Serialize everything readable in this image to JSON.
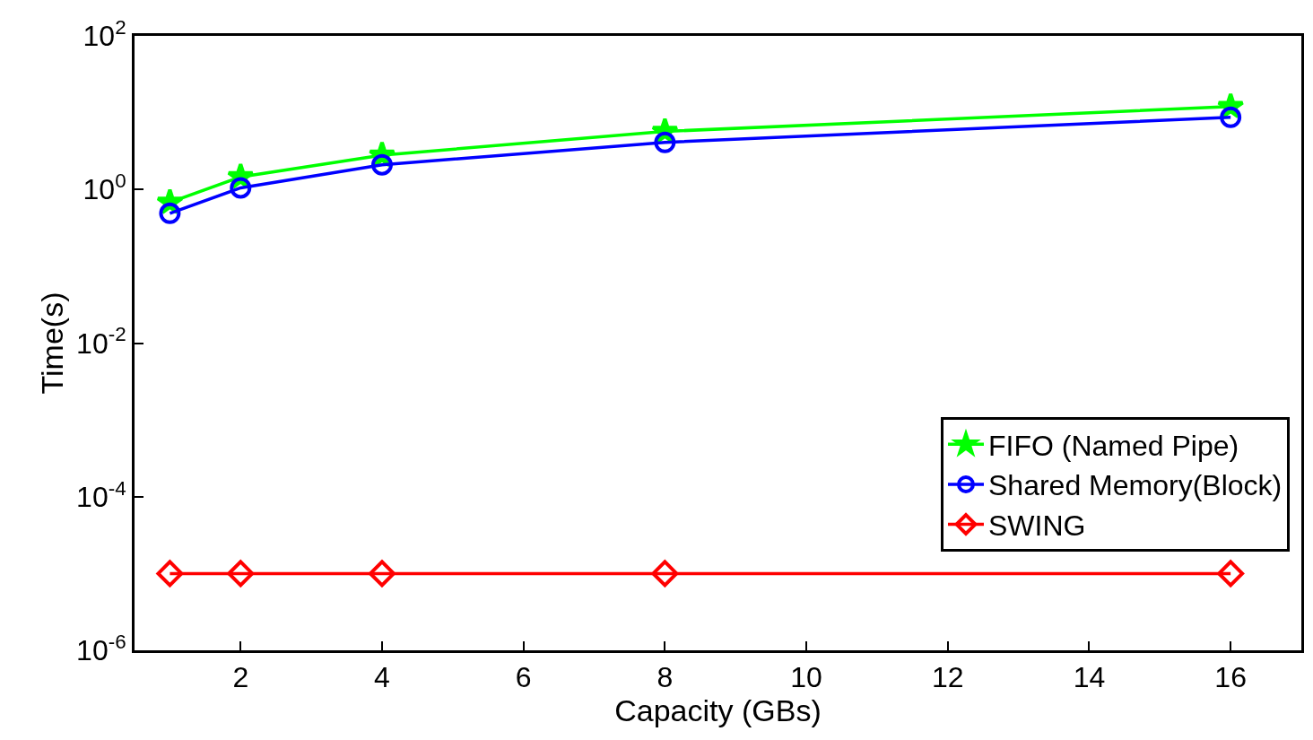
{
  "chart_data": {
    "type": "line",
    "xlabel": "Capacity (GBs)",
    "ylabel": "Time(s)",
    "x": [
      1,
      2,
      4,
      8,
      16
    ],
    "series": [
      {
        "name": "FIFO (Named Pipe)",
        "color": "#00ff00",
        "marker": "star",
        "values": [
          0.68,
          1.46,
          2.8,
          5.7,
          12
        ]
      },
      {
        "name": "Shared Memory(Block)",
        "color": "#0000ff",
        "marker": "circle",
        "values": [
          0.49,
          1.05,
          2.1,
          4.1,
          8.7
        ]
      },
      {
        "name": "SWING",
        "color": "#ff0000",
        "marker": "diamond",
        "values": [
          1e-05,
          1e-05,
          1e-05,
          1e-05,
          1e-05
        ]
      }
    ],
    "log": "y",
    "xlim": [
      0.5,
      17
    ],
    "xticks": [
      2,
      4,
      6,
      8,
      10,
      12,
      14,
      16
    ],
    "ylim": [
      1e-06,
      100
    ],
    "yticks": [
      {
        "value": 1e-06,
        "label": "10$^{-6}$"
      },
      {
        "value": 0.0001,
        "label": "10$^{-4}$"
      },
      {
        "value": 0.01,
        "label": "10$^{-2}$"
      },
      {
        "value": 1,
        "label": "10$^{0}$"
      },
      {
        "value": 100,
        "label": "10$^{2}$"
      }
    ],
    "legend": "right",
    "line_style": "solid"
  }
}
